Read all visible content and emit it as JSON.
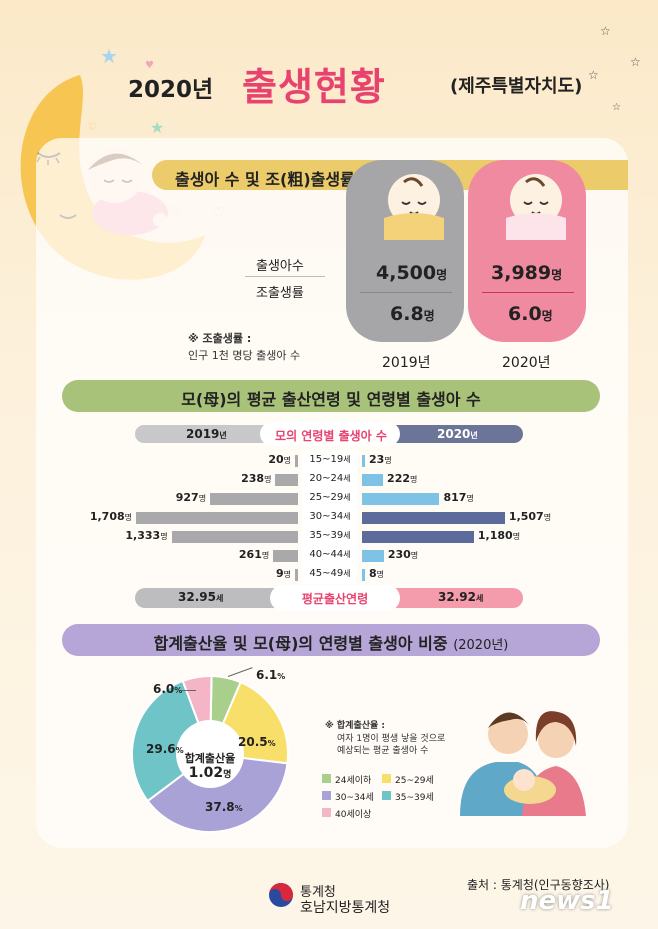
{
  "header": {
    "year": "2020년",
    "title": "출생현황",
    "region": "(제주특별자치도)"
  },
  "section1": {
    "title": "출생아 수 및 조(粗)출생률",
    "row1_label": "출생아수",
    "row2_label": "조출생률",
    "note_title": "※ 조출생률 :",
    "note_text": "인구 1천 명당 출생아 수",
    "y2019": {
      "year": "2019년",
      "births_value": "4,500",
      "births_unit": "명",
      "rate_value": "6.8",
      "rate_unit": "명"
    },
    "y2020": {
      "year": "2020년",
      "births_value": "3,989",
      "births_unit": "명",
      "rate_value": "6.0",
      "rate_unit": "명"
    }
  },
  "section2": {
    "title": "모(母)의 평균 출산연령 및 연령별 출생아 수",
    "left_year": "2019",
    "left_year_unit": "년",
    "center_label": "모의 연령별 출생아 수",
    "right_year": "2020",
    "right_year_unit": "년",
    "avg_label": "평균출산연령",
    "avg_left_value": "32.95",
    "avg_left_unit": "세",
    "avg_right_value": "32.92",
    "avg_right_unit": "세",
    "age_unit": "세",
    "count_unit": "명"
  },
  "section3": {
    "title": "합계출산율 및 모(母)의 연령별 출생아 비중",
    "title_paren": "(2020년)",
    "center_label": "합계출산율",
    "center_value": "1.02",
    "center_unit": "명",
    "note_title": "※ 합계출산율 :",
    "note_line1": "여자 1명이 평생 낳을 것으로",
    "note_line2": "예상되는 평균 출생아 수",
    "legend": [
      "24세이하",
      "25~29세",
      "30~34세",
      "35~39세",
      "40세이상"
    ]
  },
  "footer": {
    "org_line1": "통계청",
    "org_line2": "호남지방통계청",
    "source": "출처 : 통계청(인구동향조사)",
    "news_logo": "news1"
  },
  "colors": {
    "title_pink": "#e8436f",
    "s1_header": "#ebcb6a",
    "s2_header": "#a9c27a",
    "s3_header": "#b6a6d8",
    "bar_2019": "#a9a9ab",
    "bar_2020_dark": "#5c6a9c",
    "bar_2020_light": "#7ec3e5",
    "pie_24": "#a8cf8c",
    "pie_25": "#f8df6a",
    "pie_30": "#a8a2d6",
    "pie_35": "#6fc4c8",
    "pie_40": "#f4b6c6"
  },
  "chart_data": [
    {
      "type": "bar",
      "orientation": "horizontal-butterfly",
      "title": "모의 연령별 출생아 수",
      "categories": [
        "15~19",
        "20~24",
        "25~29",
        "30~34",
        "35~39",
        "40~44",
        "45~49"
      ],
      "series": [
        {
          "name": "2019",
          "values": [
            20,
            238,
            927,
            1708,
            1333,
            261,
            9
          ]
        },
        {
          "name": "2020",
          "values": [
            23,
            222,
            817,
            1507,
            1180,
            230,
            8
          ]
        }
      ],
      "display_values_2019": [
        "20",
        "238",
        "927",
        "1,708",
        "1,333",
        "261",
        "9"
      ],
      "display_values_2020": [
        "23",
        "222",
        "817",
        "1,507",
        "1,180",
        "230",
        "8"
      ],
      "xlim": [
        0,
        1708
      ]
    },
    {
      "type": "pie",
      "title": "",
      "categories": [
        "24세이하",
        "25~29세",
        "30~34세",
        "35~39세",
        "40세이상"
      ],
      "values": [
        6.1,
        20.5,
        37.8,
        29.6,
        6.0
      ],
      "display_values": [
        "6.1",
        "20.5",
        "37.8",
        "29.6",
        "6.0"
      ],
      "unit": "%",
      "donut": true,
      "legend": "right"
    }
  ]
}
